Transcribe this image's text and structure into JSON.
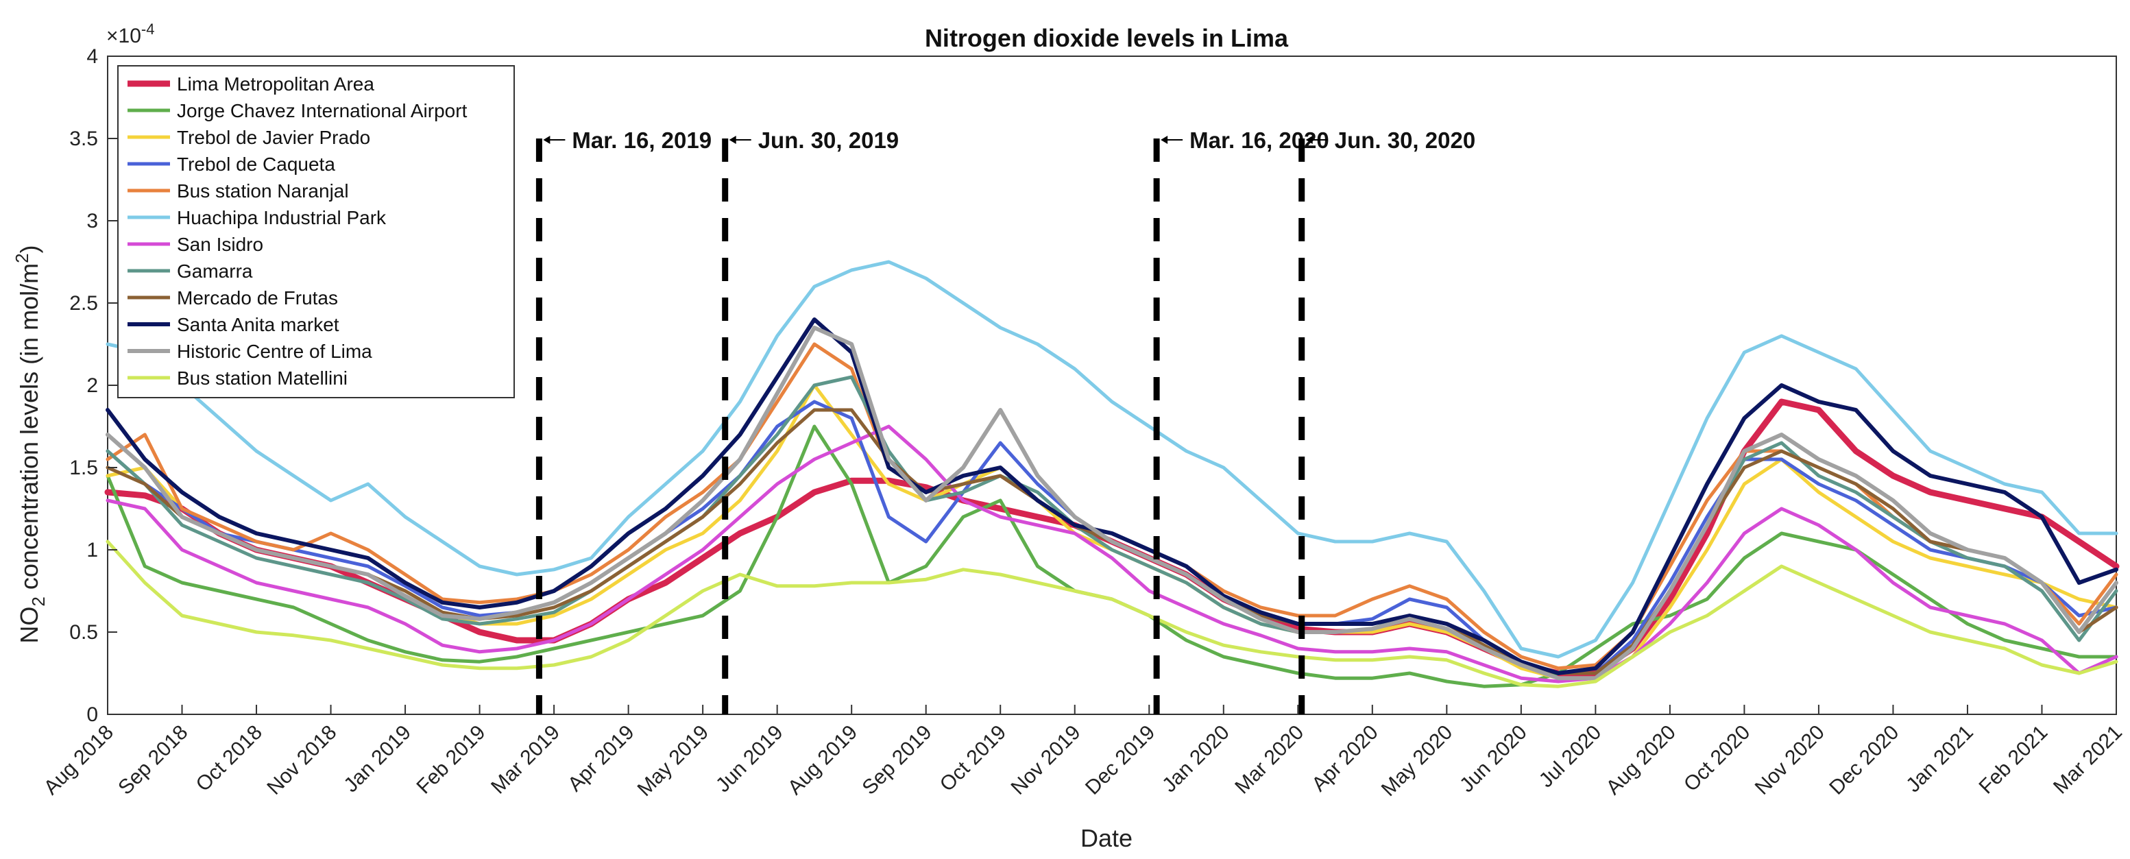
{
  "chart_data": {
    "type": "line",
    "title": "Nitrogen dioxide levels in Lima",
    "xlabel": "Date",
    "ylabel": "NO",
    "ylabel_sub": "2",
    "ylabel_rest": " concentration levels (in mol/m",
    "ylabel_sup": "2",
    "ylabel_end": ")",
    "y_exponent": "×10",
    "y_exponent_power": "-4",
    "ylim": [
      0,
      4
    ],
    "yticks": [
      "0",
      "0.5",
      "1",
      "1.5",
      "2",
      "2.5",
      "3",
      "3.5",
      "4"
    ],
    "xticks": [
      "Aug 2018",
      "Sep 2018",
      "Oct 2018",
      "Nov 2018",
      "Jan 2019",
      "Feb 2019",
      "Mar 2019",
      "Apr 2019",
      "May 2019",
      "Jun 2019",
      "Aug 2019",
      "Sep 2019",
      "Oct 2019",
      "Nov 2019",
      "Dec 2019",
      "Jan 2020",
      "Mar 2020",
      "Apr 2020",
      "May 2020",
      "Jun 2020",
      "Jul 2020",
      "Aug 2020",
      "Oct 2020",
      "Nov 2020",
      "Dec 2020",
      "Jan 2021",
      "Feb 2021",
      "Mar 2021"
    ],
    "grid": false,
    "legend_position": "top-left",
    "vlines": [
      {
        "x": 11.6,
        "label": "Mar. 16, 2019"
      },
      {
        "x": 16.6,
        "label": "Jun. 30, 2019"
      },
      {
        "x": 28.2,
        "label": "Mar. 16, 2020"
      },
      {
        "x": 32.1,
        "label": "Jun. 30, 2020"
      }
    ],
    "x": [
      0,
      1,
      2,
      3,
      4,
      5,
      6,
      7,
      8,
      9,
      10,
      11,
      12,
      13,
      14,
      15,
      16,
      17,
      18,
      19,
      20,
      21,
      22,
      23,
      24,
      25,
      26,
      27,
      28,
      29,
      30,
      31,
      32,
      33,
      34,
      35,
      36,
      37,
      38,
      39,
      40,
      41,
      42,
      43,
      44,
      45,
      46,
      47,
      48,
      49,
      50,
      51,
      52,
      53,
      54
    ],
    "series": [
      {
        "name": "Lima Metropolitan Area",
        "color": "#d62550",
        "width": 9,
        "values": [
          1.35,
          1.33,
          1.25,
          1.1,
          1.0,
          0.95,
          0.9,
          0.8,
          0.7,
          0.6,
          0.5,
          0.45,
          0.45,
          0.55,
          0.7,
          0.8,
          0.95,
          1.1,
          1.2,
          1.35,
          1.42,
          1.42,
          1.38,
          1.3,
          1.25,
          1.2,
          1.15,
          1.05,
          0.95,
          0.85,
          0.7,
          0.6,
          0.52,
          0.5,
          0.5,
          0.55,
          0.5,
          0.4,
          0.3,
          0.25,
          0.25,
          0.4,
          0.7,
          1.1,
          1.6,
          1.9,
          1.85,
          1.6,
          1.45,
          1.35,
          1.3,
          1.25,
          1.2,
          1.05,
          0.9
        ]
      },
      {
        "name": "Jorge Chavez International Airport",
        "color": "#5fae4c",
        "width": 5,
        "values": [
          1.45,
          0.9,
          0.8,
          0.75,
          0.7,
          0.65,
          0.55,
          0.45,
          0.38,
          0.33,
          0.32,
          0.35,
          0.4,
          0.45,
          0.5,
          0.55,
          0.6,
          0.75,
          1.2,
          1.75,
          1.4,
          0.8,
          0.9,
          1.2,
          1.3,
          0.9,
          0.75,
          0.7,
          0.6,
          0.45,
          0.35,
          0.3,
          0.25,
          0.22,
          0.22,
          0.25,
          0.2,
          0.17,
          0.18,
          0.25,
          0.4,
          0.55,
          0.6,
          0.7,
          0.95,
          1.1,
          1.05,
          1.0,
          0.85,
          0.7,
          0.55,
          0.45,
          0.4,
          0.35,
          0.35
        ]
      },
      {
        "name": "Trebol de Javier Prado",
        "color": "#f5d33a",
        "width": 5,
        "values": [
          1.45,
          1.5,
          1.25,
          1.1,
          1.0,
          0.95,
          0.9,
          0.85,
          0.75,
          0.62,
          0.55,
          0.55,
          0.6,
          0.7,
          0.85,
          1.0,
          1.1,
          1.3,
          1.6,
          2.0,
          1.7,
          1.4,
          1.3,
          1.4,
          1.5,
          1.3,
          1.1,
          1.0,
          0.9,
          0.8,
          0.65,
          0.55,
          0.5,
          0.5,
          0.5,
          0.55,
          0.5,
          0.4,
          0.28,
          0.22,
          0.22,
          0.35,
          0.65,
          1.0,
          1.4,
          1.55,
          1.35,
          1.2,
          1.05,
          0.95,
          0.9,
          0.85,
          0.8,
          0.7,
          0.65
        ]
      },
      {
        "name": "Trebol de Caqueta",
        "color": "#4a62d8",
        "width": 5,
        "values": [
          1.6,
          1.4,
          1.25,
          1.1,
          1.05,
          1.0,
          0.95,
          0.9,
          0.78,
          0.65,
          0.6,
          0.62,
          0.68,
          0.8,
          0.95,
          1.1,
          1.25,
          1.45,
          1.75,
          1.9,
          1.8,
          1.2,
          1.05,
          1.35,
          1.65,
          1.4,
          1.2,
          1.05,
          0.95,
          0.85,
          0.7,
          0.6,
          0.55,
          0.55,
          0.58,
          0.7,
          0.65,
          0.45,
          0.32,
          0.25,
          0.25,
          0.45,
          0.8,
          1.2,
          1.55,
          1.55,
          1.4,
          1.3,
          1.15,
          1.0,
          0.95,
          0.9,
          0.8,
          0.6,
          0.65
        ]
      },
      {
        "name": "Bus station Naranjal",
        "color": "#e8823e",
        "width": 5,
        "values": [
          1.55,
          1.7,
          1.25,
          1.15,
          1.05,
          1.0,
          1.1,
          1.0,
          0.85,
          0.7,
          0.68,
          0.7,
          0.75,
          0.85,
          1.0,
          1.2,
          1.35,
          1.55,
          1.9,
          2.25,
          2.1,
          1.5,
          1.35,
          1.45,
          1.5,
          1.3,
          1.15,
          1.1,
          1.0,
          0.9,
          0.75,
          0.65,
          0.6,
          0.6,
          0.7,
          0.78,
          0.7,
          0.5,
          0.35,
          0.28,
          0.3,
          0.5,
          0.9,
          1.3,
          1.6,
          1.6,
          1.5,
          1.4,
          1.2,
          1.05,
          1.0,
          0.95,
          0.8,
          0.55,
          0.85
        ]
      },
      {
        "name": "Huachipa Industrial Park",
        "color": "#7fcbe8",
        "width": 5,
        "values": [
          2.25,
          2.2,
          2.0,
          1.8,
          1.6,
          1.45,
          1.3,
          1.4,
          1.2,
          1.05,
          0.9,
          0.85,
          0.88,
          0.95,
          1.2,
          1.4,
          1.6,
          1.9,
          2.3,
          2.6,
          2.7,
          2.75,
          2.65,
          2.5,
          2.35,
          2.25,
          2.1,
          1.9,
          1.75,
          1.6,
          1.5,
          1.3,
          1.1,
          1.05,
          1.05,
          1.1,
          1.05,
          0.75,
          0.4,
          0.35,
          0.45,
          0.8,
          1.3,
          1.8,
          2.2,
          2.3,
          2.2,
          2.1,
          1.85,
          1.6,
          1.5,
          1.4,
          1.35,
          1.1,
          1.1
        ]
      },
      {
        "name": "San Isidro",
        "color": "#d54bd6",
        "width": 5,
        "values": [
          1.3,
          1.25,
          1.0,
          0.9,
          0.8,
          0.75,
          0.7,
          0.65,
          0.55,
          0.42,
          0.38,
          0.4,
          0.45,
          0.55,
          0.7,
          0.85,
          1.0,
          1.2,
          1.4,
          1.55,
          1.65,
          1.75,
          1.55,
          1.3,
          1.2,
          1.15,
          1.1,
          0.95,
          0.75,
          0.65,
          0.55,
          0.48,
          0.4,
          0.38,
          0.38,
          0.4,
          0.38,
          0.3,
          0.22,
          0.2,
          0.22,
          0.35,
          0.55,
          0.8,
          1.1,
          1.25,
          1.15,
          1.0,
          0.8,
          0.65,
          0.6,
          0.55,
          0.45,
          0.25,
          0.35
        ]
      },
      {
        "name": "Gamarra",
        "color": "#5d968a",
        "width": 5,
        "values": [
          1.6,
          1.4,
          1.15,
          1.05,
          0.95,
          0.9,
          0.85,
          0.8,
          0.7,
          0.58,
          0.55,
          0.58,
          0.62,
          0.75,
          0.9,
          1.05,
          1.2,
          1.45,
          1.7,
          2.0,
          2.05,
          1.6,
          1.3,
          1.35,
          1.45,
          1.35,
          1.15,
          1.0,
          0.9,
          0.8,
          0.65,
          0.55,
          0.5,
          0.5,
          0.52,
          0.6,
          0.55,
          0.42,
          0.3,
          0.22,
          0.22,
          0.4,
          0.75,
          1.15,
          1.55,
          1.65,
          1.45,
          1.35,
          1.2,
          1.05,
          0.95,
          0.9,
          0.75,
          0.45,
          0.75
        ]
      },
      {
        "name": "Mercado de Frutas",
        "color": "#8b6134",
        "width": 5,
        "values": [
          1.5,
          1.4,
          1.2,
          1.1,
          1.0,
          0.95,
          0.9,
          0.85,
          0.75,
          0.62,
          0.58,
          0.6,
          0.65,
          0.75,
          0.9,
          1.05,
          1.2,
          1.4,
          1.65,
          1.85,
          1.85,
          1.55,
          1.35,
          1.4,
          1.45,
          1.3,
          1.15,
          1.05,
          0.95,
          0.85,
          0.7,
          0.6,
          0.55,
          0.55,
          0.55,
          0.6,
          0.55,
          0.42,
          0.3,
          0.25,
          0.25,
          0.42,
          0.75,
          1.15,
          1.5,
          1.6,
          1.5,
          1.4,
          1.25,
          1.05,
          1.0,
          0.95,
          0.8,
          0.5,
          0.65
        ]
      },
      {
        "name": "Santa Anita market",
        "color": "#0b1660",
        "width": 6,
        "values": [
          1.85,
          1.55,
          1.35,
          1.2,
          1.1,
          1.05,
          1.0,
          0.95,
          0.8,
          0.68,
          0.65,
          0.68,
          0.75,
          0.9,
          1.1,
          1.25,
          1.45,
          1.7,
          2.05,
          2.4,
          2.2,
          1.5,
          1.35,
          1.45,
          1.5,
          1.3,
          1.15,
          1.1,
          1.0,
          0.9,
          0.72,
          0.62,
          0.55,
          0.55,
          0.55,
          0.6,
          0.55,
          0.45,
          0.32,
          0.25,
          0.28,
          0.5,
          0.95,
          1.4,
          1.8,
          2.0,
          1.9,
          1.85,
          1.6,
          1.45,
          1.4,
          1.35,
          1.2,
          0.8,
          0.88
        ]
      },
      {
        "name": "Historic Centre of Lima",
        "color": "#a1a1a1",
        "width": 6,
        "values": [
          1.7,
          1.5,
          1.2,
          1.1,
          1.0,
          0.95,
          0.9,
          0.85,
          0.72,
          0.6,
          0.58,
          0.62,
          0.68,
          0.8,
          0.95,
          1.1,
          1.3,
          1.55,
          1.95,
          2.35,
          2.25,
          1.55,
          1.3,
          1.5,
          1.85,
          1.45,
          1.2,
          1.05,
          0.95,
          0.85,
          0.7,
          0.58,
          0.5,
          0.5,
          0.52,
          0.58,
          0.52,
          0.4,
          0.3,
          0.22,
          0.22,
          0.4,
          0.75,
          1.15,
          1.6,
          1.7,
          1.55,
          1.45,
          1.3,
          1.1,
          1.0,
          0.95,
          0.8,
          0.5,
          0.8
        ]
      },
      {
        "name": "Bus station Matellini",
        "color": "#cfe85a",
        "width": 5,
        "values": [
          1.05,
          0.8,
          0.6,
          0.55,
          0.5,
          0.48,
          0.45,
          0.4,
          0.35,
          0.3,
          0.28,
          0.28,
          0.3,
          0.35,
          0.45,
          0.6,
          0.75,
          0.85,
          0.78,
          0.78,
          0.8,
          0.8,
          0.82,
          0.88,
          0.85,
          0.8,
          0.75,
          0.7,
          0.6,
          0.5,
          0.42,
          0.38,
          0.35,
          0.33,
          0.33,
          0.35,
          0.33,
          0.25,
          0.18,
          0.17,
          0.2,
          0.35,
          0.5,
          0.6,
          0.75,
          0.9,
          0.8,
          0.7,
          0.6,
          0.5,
          0.45,
          0.4,
          0.3,
          0.25,
          0.32
        ]
      }
    ]
  }
}
